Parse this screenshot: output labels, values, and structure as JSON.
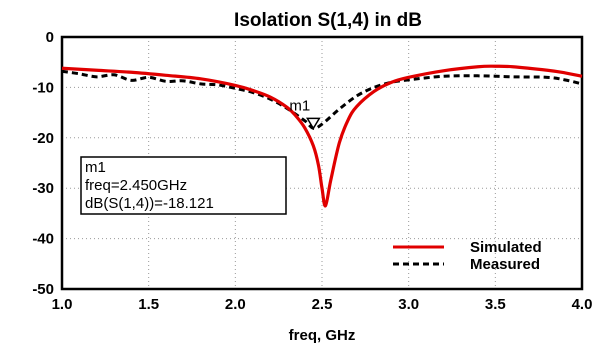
{
  "chart_data": {
    "type": "line",
    "title": "Isolation S(1,4) in dB",
    "xlabel": "freq, GHz",
    "ylabel": "",
    "xlim": [
      1.0,
      4.0
    ],
    "ylim": [
      -50,
      0
    ],
    "xticks": [
      "1.0",
      "1.5",
      "2.0",
      "2.5",
      "3.0",
      "3.5",
      "4.0"
    ],
    "yticks": [
      "0",
      "-10",
      "-20",
      "-30",
      "-40",
      "-50"
    ],
    "grid": true,
    "legend_position": "bottom-right",
    "series": [
      {
        "name": "Simulated",
        "color": "#e00000",
        "style": "solid",
        "x": [
          1.0,
          1.2,
          1.4,
          1.6,
          1.8,
          2.0,
          2.1,
          2.2,
          2.3,
          2.35,
          2.4,
          2.45,
          2.48,
          2.5,
          2.52,
          2.55,
          2.6,
          2.65,
          2.7,
          2.8,
          2.9,
          3.0,
          3.2,
          3.4,
          3.5,
          3.6,
          3.8,
          3.9,
          4.0
        ],
        "y": [
          -6.2,
          -6.6,
          -7.0,
          -7.6,
          -8.3,
          -9.6,
          -10.6,
          -11.9,
          -14.0,
          -15.7,
          -18.0,
          -21.6,
          -25.5,
          -30.0,
          -33.5,
          -28.5,
          -21.0,
          -16.5,
          -13.8,
          -10.8,
          -9.0,
          -8.0,
          -6.7,
          -5.9,
          -5.8,
          -5.9,
          -6.6,
          -7.1,
          -7.8
        ]
      },
      {
        "name": "Measured",
        "color": "#000000",
        "style": "dashed",
        "x": [
          1.0,
          1.1,
          1.2,
          1.3,
          1.4,
          1.5,
          1.6,
          1.7,
          1.8,
          1.9,
          2.0,
          2.1,
          2.2,
          2.3,
          2.4,
          2.45,
          2.5,
          2.6,
          2.7,
          2.8,
          2.9,
          3.0,
          3.2,
          3.4,
          3.6,
          3.8,
          3.9,
          4.0
        ],
        "y": [
          -6.8,
          -7.3,
          -7.9,
          -7.5,
          -8.6,
          -8.0,
          -8.8,
          -8.7,
          -9.3,
          -9.5,
          -10.2,
          -11.0,
          -12.3,
          -14.2,
          -16.6,
          -18.1,
          -17.3,
          -14.3,
          -11.7,
          -10.0,
          -9.0,
          -8.5,
          -7.8,
          -7.7,
          -7.9,
          -8.0,
          -8.5,
          -9.3
        ]
      }
    ],
    "marker": {
      "label": "m1",
      "x": 2.45,
      "y": -18.121,
      "readout": [
        "m1",
        "freq=2.450GHz",
        "dB(S(1,4))=-18.121"
      ]
    }
  }
}
